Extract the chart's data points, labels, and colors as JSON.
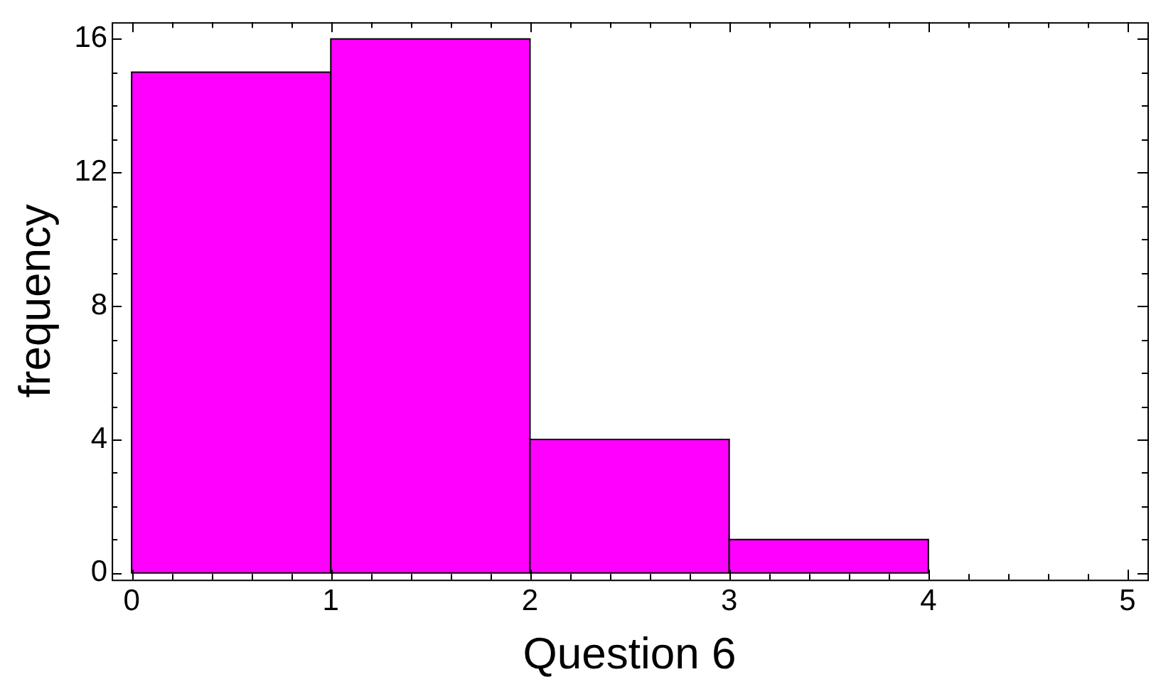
{
  "chart_data": {
    "type": "histogram",
    "xlabel": "Question 6",
    "ylabel": "frequency",
    "bins": [
      0,
      1,
      2,
      3,
      4,
      5
    ],
    "values": [
      15,
      16,
      4,
      1,
      0
    ],
    "color": "#ff00ff",
    "xlim": [
      -0.1,
      5.1
    ],
    "ylim": [
      -0.2,
      16.5
    ],
    "xticks": [
      0,
      {
        "value": 0.2,
        "label": null
      },
      {
        "value": 0.4,
        "label": null
      },
      {
        "value": 0.6,
        "label": null
      },
      {
        "value": 0.8,
        "label": null
      },
      1,
      {
        "value": 1.2,
        "label": null
      },
      {
        "value": 1.4,
        "label": null
      },
      {
        "value": 1.6,
        "label": null
      },
      {
        "value": 1.8,
        "label": null
      },
      2,
      {
        "value": 2.2,
        "label": null
      },
      {
        "value": 2.4,
        "label": null
      },
      {
        "value": 2.6,
        "label": null
      },
      {
        "value": 2.8,
        "label": null
      },
      3,
      {
        "value": 3.2,
        "label": null
      },
      {
        "value": 3.4,
        "label": null
      },
      {
        "value": 3.6,
        "label": null
      },
      {
        "value": 3.8,
        "label": null
      },
      4,
      {
        "value": 4.2,
        "label": null
      },
      {
        "value": 4.4,
        "label": null
      },
      {
        "value": 4.6,
        "label": null
      },
      {
        "value": 4.8,
        "label": null
      },
      5
    ],
    "yticks": [
      0,
      {
        "value": 1,
        "label": null
      },
      {
        "value": 2,
        "label": null
      },
      {
        "value": 3,
        "label": null
      },
      4,
      {
        "value": 5,
        "label": null
      },
      {
        "value": 6,
        "label": null
      },
      {
        "value": 7,
        "label": null
      },
      8,
      {
        "value": 9,
        "label": null
      },
      {
        "value": 10,
        "label": null
      },
      {
        "value": 11,
        "label": null
      },
      12,
      {
        "value": 13,
        "label": null
      },
      {
        "value": 14,
        "label": null
      },
      {
        "value": 15,
        "label": null
      },
      16
    ],
    "grid": false,
    "legend": false
  }
}
